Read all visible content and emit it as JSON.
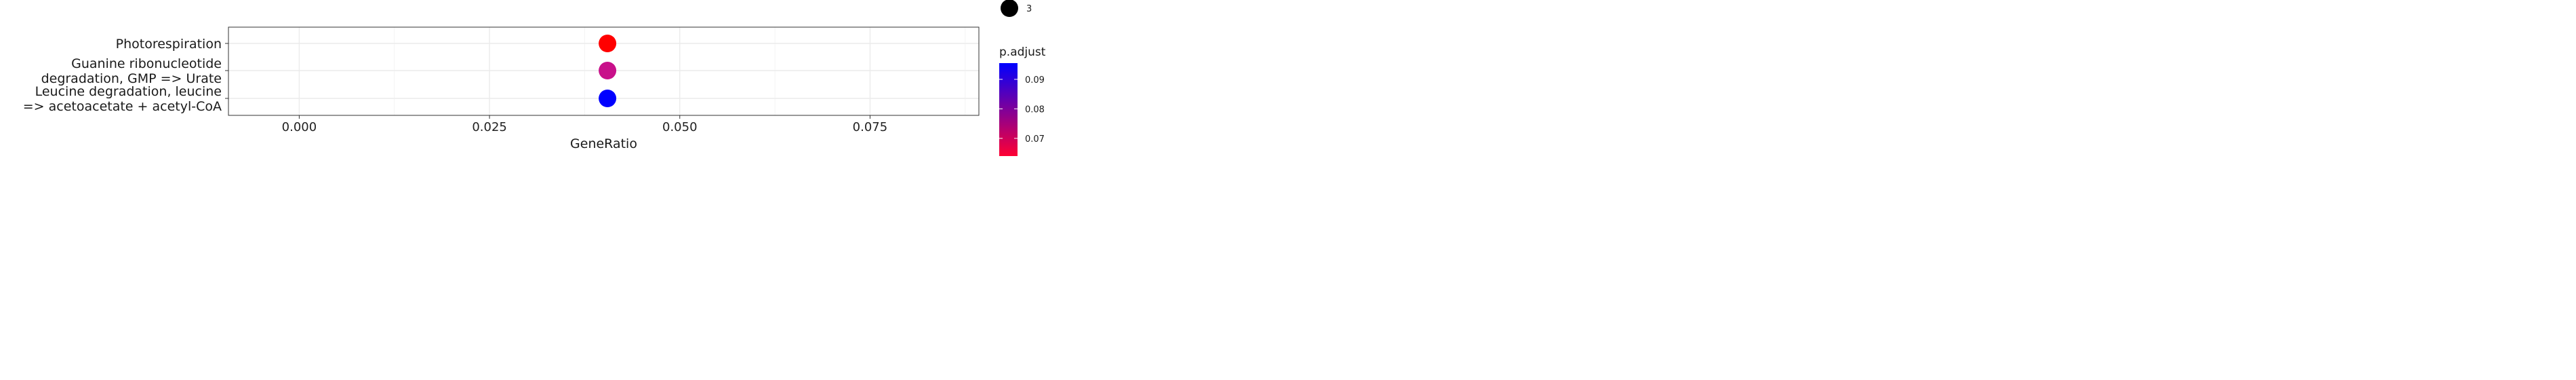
{
  "chart_data": {
    "type": "scatter",
    "xlabel": "GeneRatio",
    "ylabel": "",
    "xlim": [
      -0.0093,
      0.0893
    ],
    "x_ticks": [
      0.0,
      0.025,
      0.05,
      0.075
    ],
    "x_tick_labels": [
      "0.000",
      "0.025",
      "0.050",
      "0.075"
    ],
    "grid": true,
    "points": [
      {
        "category_lines": [
          "Photorespiration"
        ],
        "x": 0.0405,
        "p_adjust": 0.0655,
        "count": 3,
        "color": "#ff0000"
      },
      {
        "category_lines": [
          "Guanine ribonucleotide",
          "degradation, GMP => Urate"
        ],
        "x": 0.0405,
        "p_adjust": 0.0805,
        "count": 3,
        "color": "#c8108a"
      },
      {
        "category_lines": [
          "Leucine degradation, leucine",
          "=> acetoacetate + acetyl-CoA"
        ],
        "x": 0.0405,
        "p_adjust": 0.095,
        "count": 3,
        "color": "#0000ff"
      }
    ],
    "legend": {
      "size": {
        "values": [
          3
        ],
        "labels": [
          "3"
        ]
      },
      "color": {
        "title": "p.adjust",
        "low_color": "#ff0033",
        "high_color": "#0000ff",
        "range": [
          0.064,
          0.0955
        ],
        "ticks": [
          0.07,
          0.08,
          0.09
        ],
        "tick_labels": [
          "0.07",
          "0.08",
          "0.09"
        ]
      }
    }
  }
}
